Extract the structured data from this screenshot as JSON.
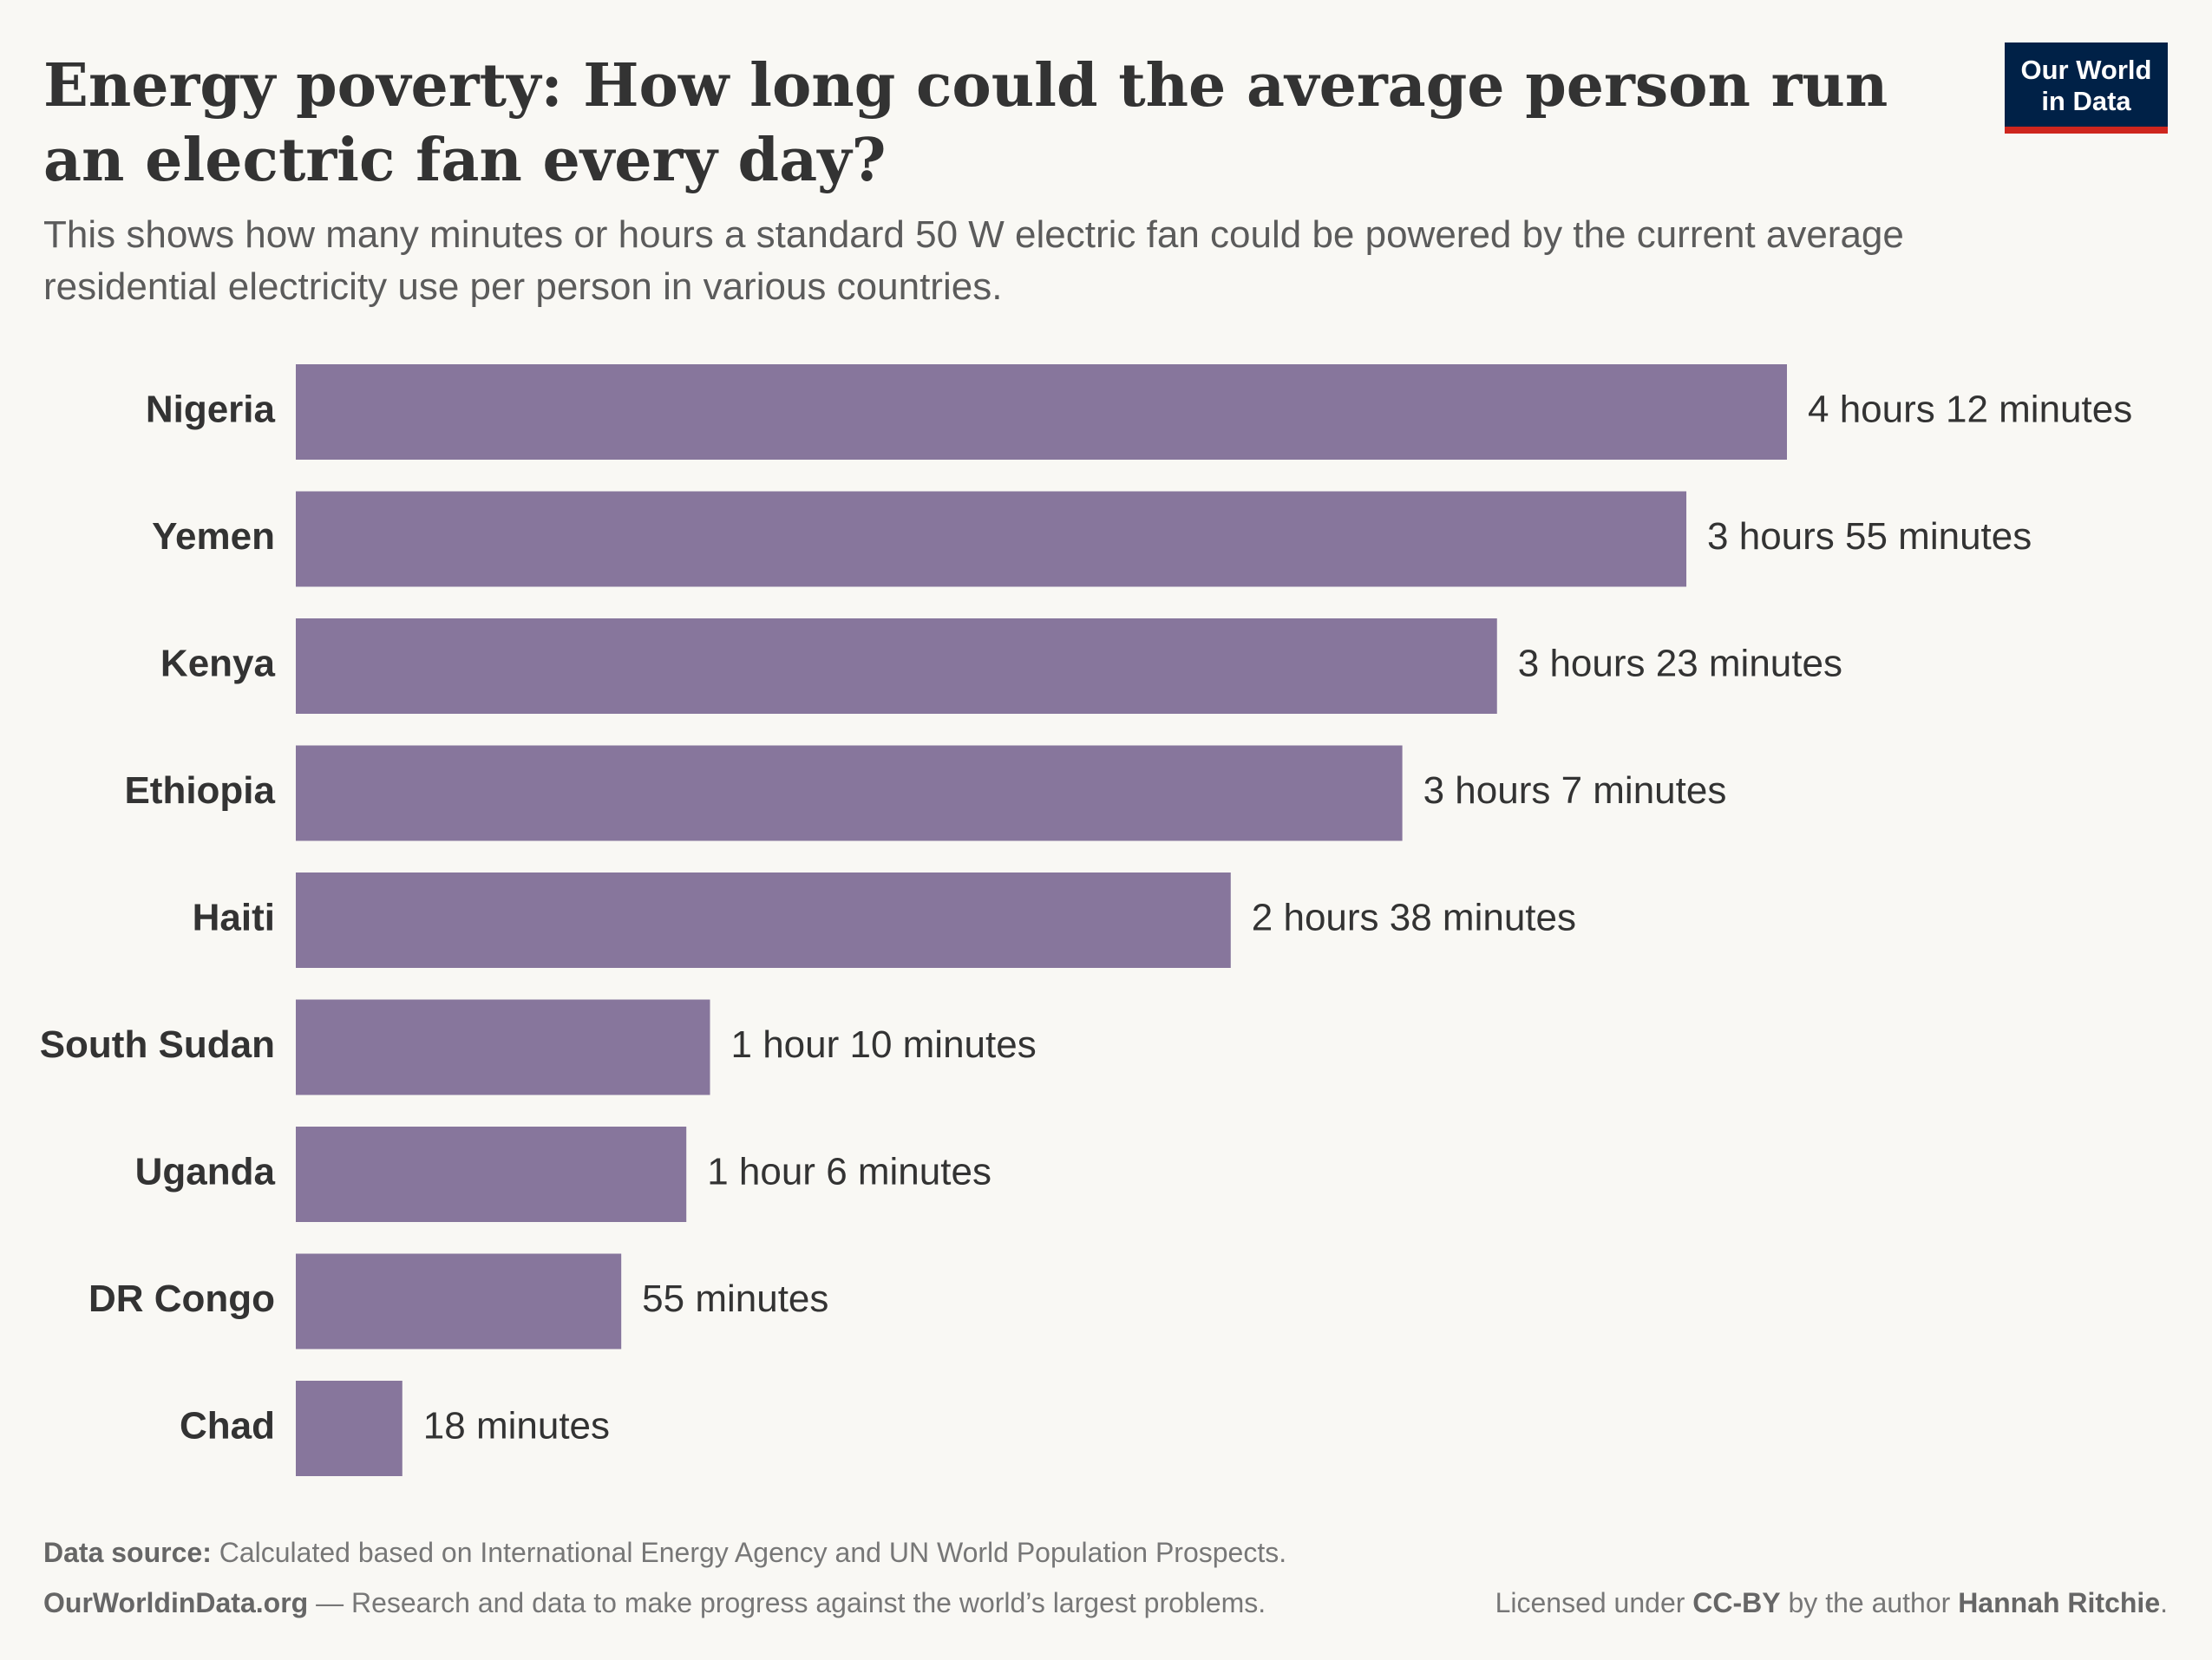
{
  "chart_data": {
    "type": "bar",
    "orientation": "horizontal",
    "title": [
      "Energy poverty: How long could the average person run",
      "an electric fan every day?"
    ],
    "subtitle": [
      "This shows how many minutes or hours a standard 50 W electric fan could be powered by the current average",
      "residential electricity use per person in various countries."
    ],
    "categories": [
      "Nigeria",
      "Yemen",
      "Kenya",
      "Ethiopia",
      "Haiti",
      "South Sudan",
      "Uganda",
      "DR Congo",
      "Chad"
    ],
    "values": [
      252,
      235,
      203,
      187,
      158,
      70,
      66,
      55,
      18
    ],
    "value_labels": [
      "4 hours 12 minutes",
      "3 hours 55 minutes",
      "3 hours 23 minutes",
      "3 hours 7 minutes",
      "2 hours 38 minutes",
      "1 hour 10 minutes",
      "1 hour 6 minutes",
      "55 minutes",
      "18 minutes"
    ],
    "color": "#87769c",
    "logo": [
      "Our World",
      "in Data"
    ],
    "source_label": "Data source:",
    "source": " Calculated based on International Energy Agency and UN World Population Prospects.",
    "site": "OurWorldinData.org",
    "tagline": " — Research and data to make progress against the world’s largest problems.",
    "license": [
      "Licensed under ",
      "CC-BY",
      " by the author ",
      "Hannah Ritchie",
      "."
    ]
  }
}
